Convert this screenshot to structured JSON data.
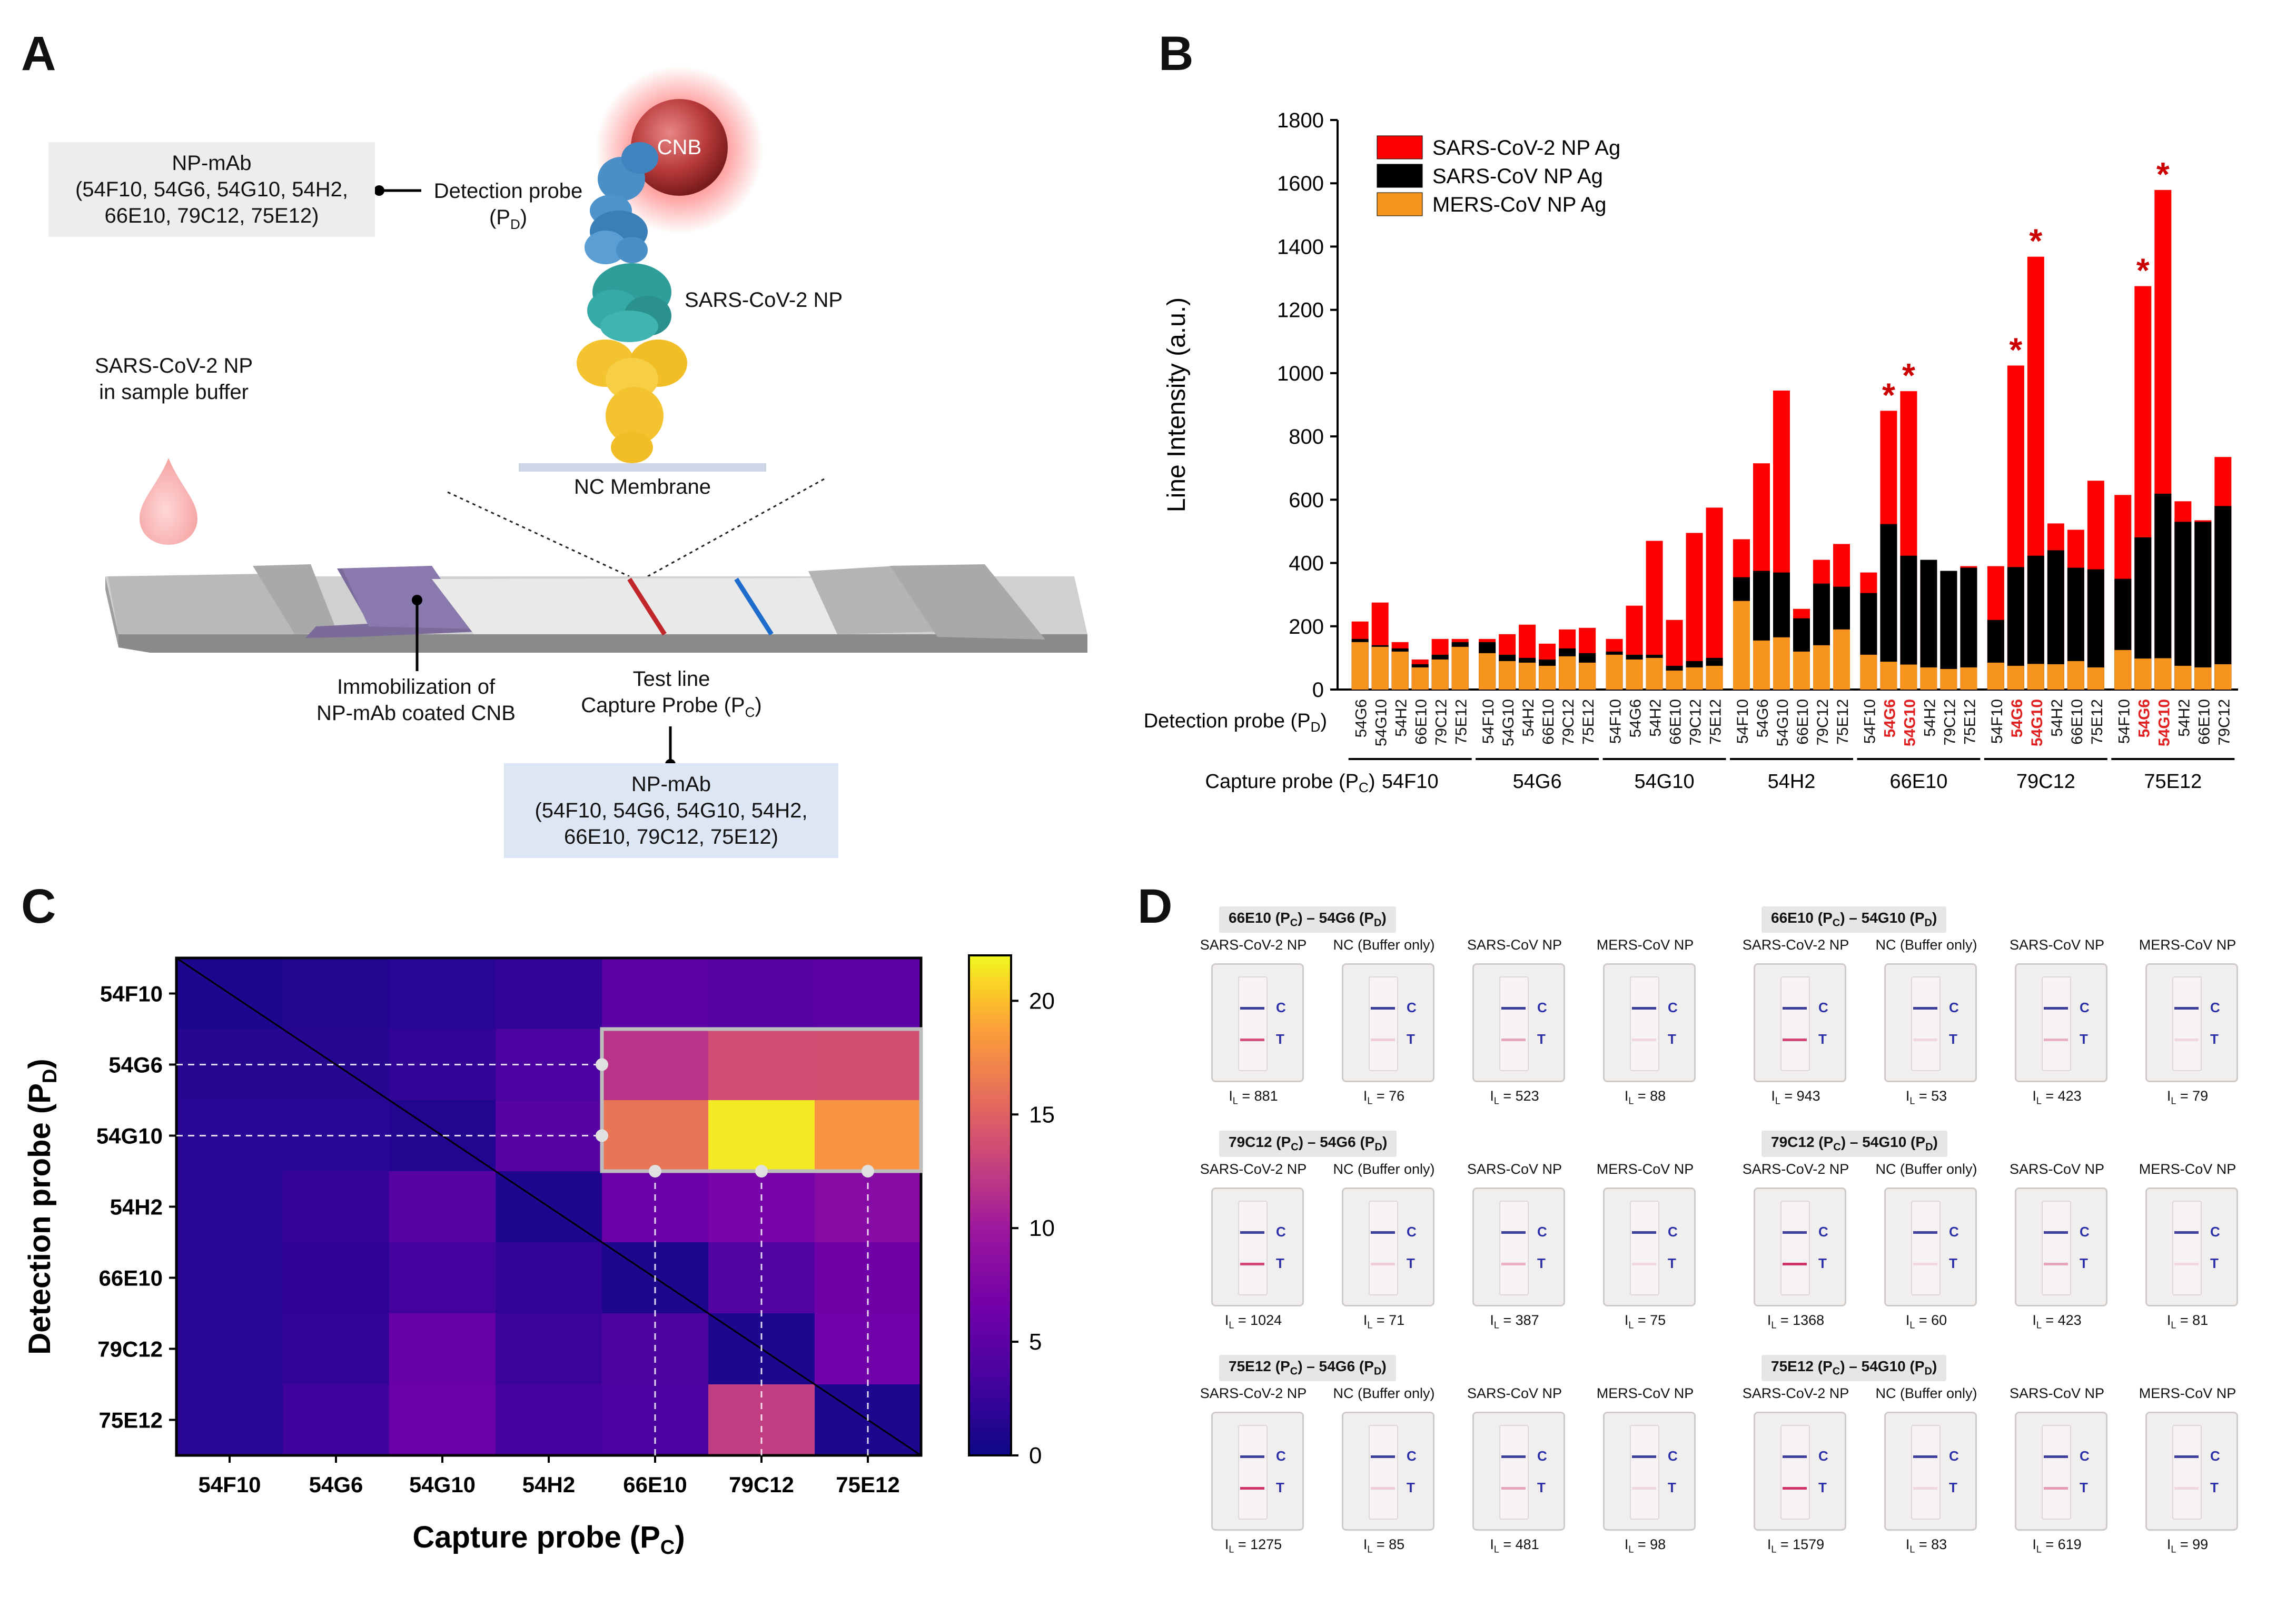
{
  "panel_labels": {
    "a": "A",
    "b": "B",
    "c": "C",
    "d": "D"
  },
  "panel_a": {
    "detection_box": {
      "line1": "NP-mAb",
      "line2": "(54F10, 54G6, 54G10, 54H2,",
      "line3": "66E10, 79C12, 75E12)"
    },
    "detection_probe": {
      "line1": "Detection probe",
      "line2": "(P",
      "sub": "D",
      "line2_end": ")"
    },
    "cnb": "CNB",
    "np_label": "SARS-CoV-2 NP",
    "sample": {
      "line1": "SARS-CoV-2 NP",
      "line2": "in sample buffer"
    },
    "membrane": "NC Membrane",
    "immobilization": {
      "line1": "Immobilization of",
      "line2": "NP-mAb coated CNB"
    },
    "test_line": {
      "line1": "Test line",
      "line2": "Capture Probe (P",
      "sub": "C",
      "end": ")"
    },
    "capture_box": {
      "line1": "NP-mAb",
      "line2": "(54F10, 54G6, 54G10, 54H2,",
      "line3": "66E10, 79C12, 75E12)"
    }
  },
  "panel_b": {
    "chart_data": {
      "type": "bar",
      "stacked": "overlay",
      "ylabel": "Line Intensity (a.u.)",
      "ylim": [
        0,
        1800
      ],
      "yticks": [
        0,
        200,
        400,
        600,
        800,
        1000,
        1200,
        1400,
        1600,
        1800
      ],
      "legend": [
        "SARS-CoV-2 NP Ag",
        "SARS-CoV NP Ag",
        "MERS-CoV NP Ag"
      ],
      "legend_colors": [
        "#ff0000",
        "#000000",
        "#f7941d"
      ],
      "detection_axis_label": "Detection probe (P",
      "detection_axis_sub": "D",
      "capture_axis_label": "Capture probe (P",
      "capture_axis_sub": "C",
      "axis_end": ")",
      "groups": [
        {
          "capture": "54F10",
          "bars": [
            {
              "det": "54G6",
              "sars2": 215,
              "sars": 160,
              "mers": 150,
              "star": false,
              "hl": false
            },
            {
              "det": "54G10",
              "sars2": 275,
              "sars": 140,
              "mers": 135,
              "star": false,
              "hl": false
            },
            {
              "det": "54H2",
              "sars2": 150,
              "sars": 130,
              "mers": 120,
              "star": false,
              "hl": false
            },
            {
              "det": "66E10",
              "sars2": 95,
              "sars": 80,
              "mers": 70,
              "star": false,
              "hl": false
            },
            {
              "det": "79C12",
              "sars2": 160,
              "sars": 110,
              "mers": 95,
              "star": false,
              "hl": false
            },
            {
              "det": "75E12",
              "sars2": 160,
              "sars": 150,
              "mers": 135,
              "star": false,
              "hl": false
            }
          ]
        },
        {
          "capture": "54G6",
          "bars": [
            {
              "det": "54F10",
              "sars2": 160,
              "sars": 150,
              "mers": 115,
              "star": false,
              "hl": false
            },
            {
              "det": "54G10",
              "sars2": 175,
              "sars": 110,
              "mers": 90,
              "star": false,
              "hl": false
            },
            {
              "det": "54H2",
              "sars2": 205,
              "sars": 100,
              "mers": 85,
              "star": false,
              "hl": false
            },
            {
              "det": "66E10",
              "sars2": 145,
              "sars": 95,
              "mers": 75,
              "star": false,
              "hl": false
            },
            {
              "det": "79C12",
              "sars2": 190,
              "sars": 130,
              "mers": 105,
              "star": false,
              "hl": false
            },
            {
              "det": "75E12",
              "sars2": 195,
              "sars": 115,
              "mers": 85,
              "star": false,
              "hl": false
            }
          ]
        },
        {
          "capture": "54G10",
          "bars": [
            {
              "det": "54F10",
              "sars2": 160,
              "sars": 120,
              "mers": 110,
              "star": false,
              "hl": false
            },
            {
              "det": "54G6",
              "sars2": 265,
              "sars": 110,
              "mers": 95,
              "star": false,
              "hl": false
            },
            {
              "det": "54H2",
              "sars2": 470,
              "sars": 110,
              "mers": 100,
              "star": false,
              "hl": false
            },
            {
              "det": "66E10",
              "sars2": 220,
              "sars": 75,
              "mers": 60,
              "star": false,
              "hl": false
            },
            {
              "det": "79C12",
              "sars2": 495,
              "sars": 90,
              "mers": 70,
              "star": false,
              "hl": false
            },
            {
              "det": "75E12",
              "sars2": 575,
              "sars": 100,
              "mers": 75,
              "star": false,
              "hl": false
            }
          ]
        },
        {
          "capture": "54H2",
          "bars": [
            {
              "det": "54F10",
              "sars2": 475,
              "sars": 355,
              "mers": 280,
              "star": false,
              "hl": false
            },
            {
              "det": "54G6",
              "sars2": 715,
              "sars": 375,
              "mers": 155,
              "star": false,
              "hl": false
            },
            {
              "det": "54G10",
              "sars2": 945,
              "sars": 370,
              "mers": 165,
              "star": false,
              "hl": false
            },
            {
              "det": "66E10",
              "sars2": 255,
              "sars": 225,
              "mers": 120,
              "star": false,
              "hl": false
            },
            {
              "det": "79C12",
              "sars2": 410,
              "sars": 335,
              "mers": 140,
              "star": false,
              "hl": false
            },
            {
              "det": "75E12",
              "sars2": 460,
              "sars": 325,
              "mers": 190,
              "star": false,
              "hl": false
            }
          ]
        },
        {
          "capture": "66E10",
          "bars": [
            {
              "det": "54F10",
              "sars2": 370,
              "sars": 305,
              "mers": 110,
              "star": false,
              "hl": false
            },
            {
              "det": "54G6",
              "sars2": 881,
              "sars": 523,
              "mers": 88,
              "star": true,
              "hl": true
            },
            {
              "det": "54G10",
              "sars2": 943,
              "sars": 423,
              "mers": 79,
              "star": true,
              "hl": true
            },
            {
              "det": "54H2",
              "sars2": 395,
              "sars": 410,
              "mers": 70,
              "star": false,
              "hl": false
            },
            {
              "det": "79C12",
              "sars2": 375,
              "sars": 375,
              "mers": 65,
              "star": false,
              "hl": false
            },
            {
              "det": "75E12",
              "sars2": 390,
              "sars": 385,
              "mers": 70,
              "star": false,
              "hl": false
            }
          ]
        },
        {
          "capture": "79C12",
          "bars": [
            {
              "det": "54F10",
              "sars2": 390,
              "sars": 220,
              "mers": 85,
              "star": false,
              "hl": false
            },
            {
              "det": "54G6",
              "sars2": 1024,
              "sars": 387,
              "mers": 75,
              "star": true,
              "hl": true
            },
            {
              "det": "54G10",
              "sars2": 1368,
              "sars": 423,
              "mers": 81,
              "star": true,
              "hl": true
            },
            {
              "det": "54H2",
              "sars2": 525,
              "sars": 440,
              "mers": 80,
              "star": false,
              "hl": false
            },
            {
              "det": "66E10",
              "sars2": 505,
              "sars": 385,
              "mers": 90,
              "star": false,
              "hl": false
            },
            {
              "det": "75E12",
              "sars2": 660,
              "sars": 380,
              "mers": 70,
              "star": false,
              "hl": false
            }
          ]
        },
        {
          "capture": "75E12",
          "bars": [
            {
              "det": "54F10",
              "sars2": 615,
              "sars": 350,
              "mers": 125,
              "star": false,
              "hl": false
            },
            {
              "det": "54G6",
              "sars2": 1275,
              "sars": 481,
              "mers": 98,
              "star": true,
              "hl": true
            },
            {
              "det": "54G10",
              "sars2": 1579,
              "sars": 619,
              "mers": 99,
              "star": true,
              "hl": true
            },
            {
              "det": "54H2",
              "sars2": 595,
              "sars": 530,
              "mers": 75,
              "star": false,
              "hl": false
            },
            {
              "det": "66E10",
              "sars2": 535,
              "sars": 530,
              "mers": 70,
              "star": false,
              "hl": false
            },
            {
              "det": "79C12",
              "sars2": 735,
              "sars": 580,
              "mers": 80,
              "star": false,
              "hl": false
            }
          ]
        }
      ]
    }
  },
  "panel_c": {
    "chart_data": {
      "type": "heatmap",
      "xlabel": "Capture probe (P",
      "xlabel_sub": "C",
      "ylabel": "Detection probe (P",
      "ylabel_sub": "D",
      "label_end": ")",
      "categories": [
        "54F10",
        "54G6",
        "54G10",
        "54H2",
        "66E10",
        "79C12",
        "75E12"
      ],
      "clim": [
        0,
        22
      ],
      "colorbar_ticks": [
        0,
        5,
        10,
        15,
        20
      ],
      "values": [
        [
          1.0,
          1.2,
          1.6,
          2.2,
          4.8,
          4.6,
          4.8
        ],
        [
          1.5,
          1.5,
          2.2,
          3.6,
          11.8,
          13.6,
          13.7
        ],
        [
          1.6,
          1.6,
          1.2,
          4.6,
          16.2,
          21.5,
          18.0
        ],
        [
          1.6,
          2.4,
          4.6,
          1.0,
          6.0,
          7.0,
          8.2
        ],
        [
          1.6,
          2.0,
          3.2,
          2.2,
          1.0,
          4.2,
          6.4
        ],
        [
          1.6,
          2.2,
          5.8,
          2.6,
          3.8,
          1.0,
          6.5
        ],
        [
          1.6,
          3.0,
          6.0,
          3.4,
          3.6,
          12.5,
          1.0
        ]
      ]
    }
  },
  "panel_d": {
    "col_labels": [
      "SARS-CoV-2 NP",
      "NC (Buffer only)",
      "SARS-CoV NP",
      "MERS-CoV NP"
    ],
    "c_label": "C",
    "t_label": "T",
    "il_prefix": "I",
    "il_sub": "L",
    "il_eq": " = ",
    "pairs": [
      {
        "cap": "66E10",
        "det": "54G6",
        "values": [
          "881",
          "76",
          "523",
          "88"
        ],
        "t": [
          0.85,
          0.2,
          0.4,
          0.15
        ]
      },
      {
        "cap": "66E10",
        "det": "54G10",
        "values": [
          "943",
          "53",
          "423",
          "79"
        ],
        "t": [
          0.9,
          0.15,
          0.35,
          0.15
        ]
      },
      {
        "cap": "79C12",
        "det": "54G6",
        "values": [
          "1024",
          "71",
          "387",
          "75"
        ],
        "t": [
          0.9,
          0.2,
          0.35,
          0.15
        ]
      },
      {
        "cap": "79C12",
        "det": "54G10",
        "values": [
          "1368",
          "60",
          "423",
          "81"
        ],
        "t": [
          1.0,
          0.15,
          0.4,
          0.15
        ]
      },
      {
        "cap": "75E12",
        "det": "54G6",
        "values": [
          "1275",
          "85",
          "481",
          "98"
        ],
        "t": [
          1.0,
          0.2,
          0.4,
          0.15
        ]
      },
      {
        "cap": "75E12",
        "det": "54G10",
        "values": [
          "1579",
          "83",
          "619",
          "99"
        ],
        "t": [
          1.0,
          0.15,
          0.45,
          0.15
        ]
      }
    ],
    "title_pc": " (P",
    "title_sub_c": "C",
    "title_mid": ") – ",
    "title_sub_d": "D",
    "title_end": ")"
  }
}
